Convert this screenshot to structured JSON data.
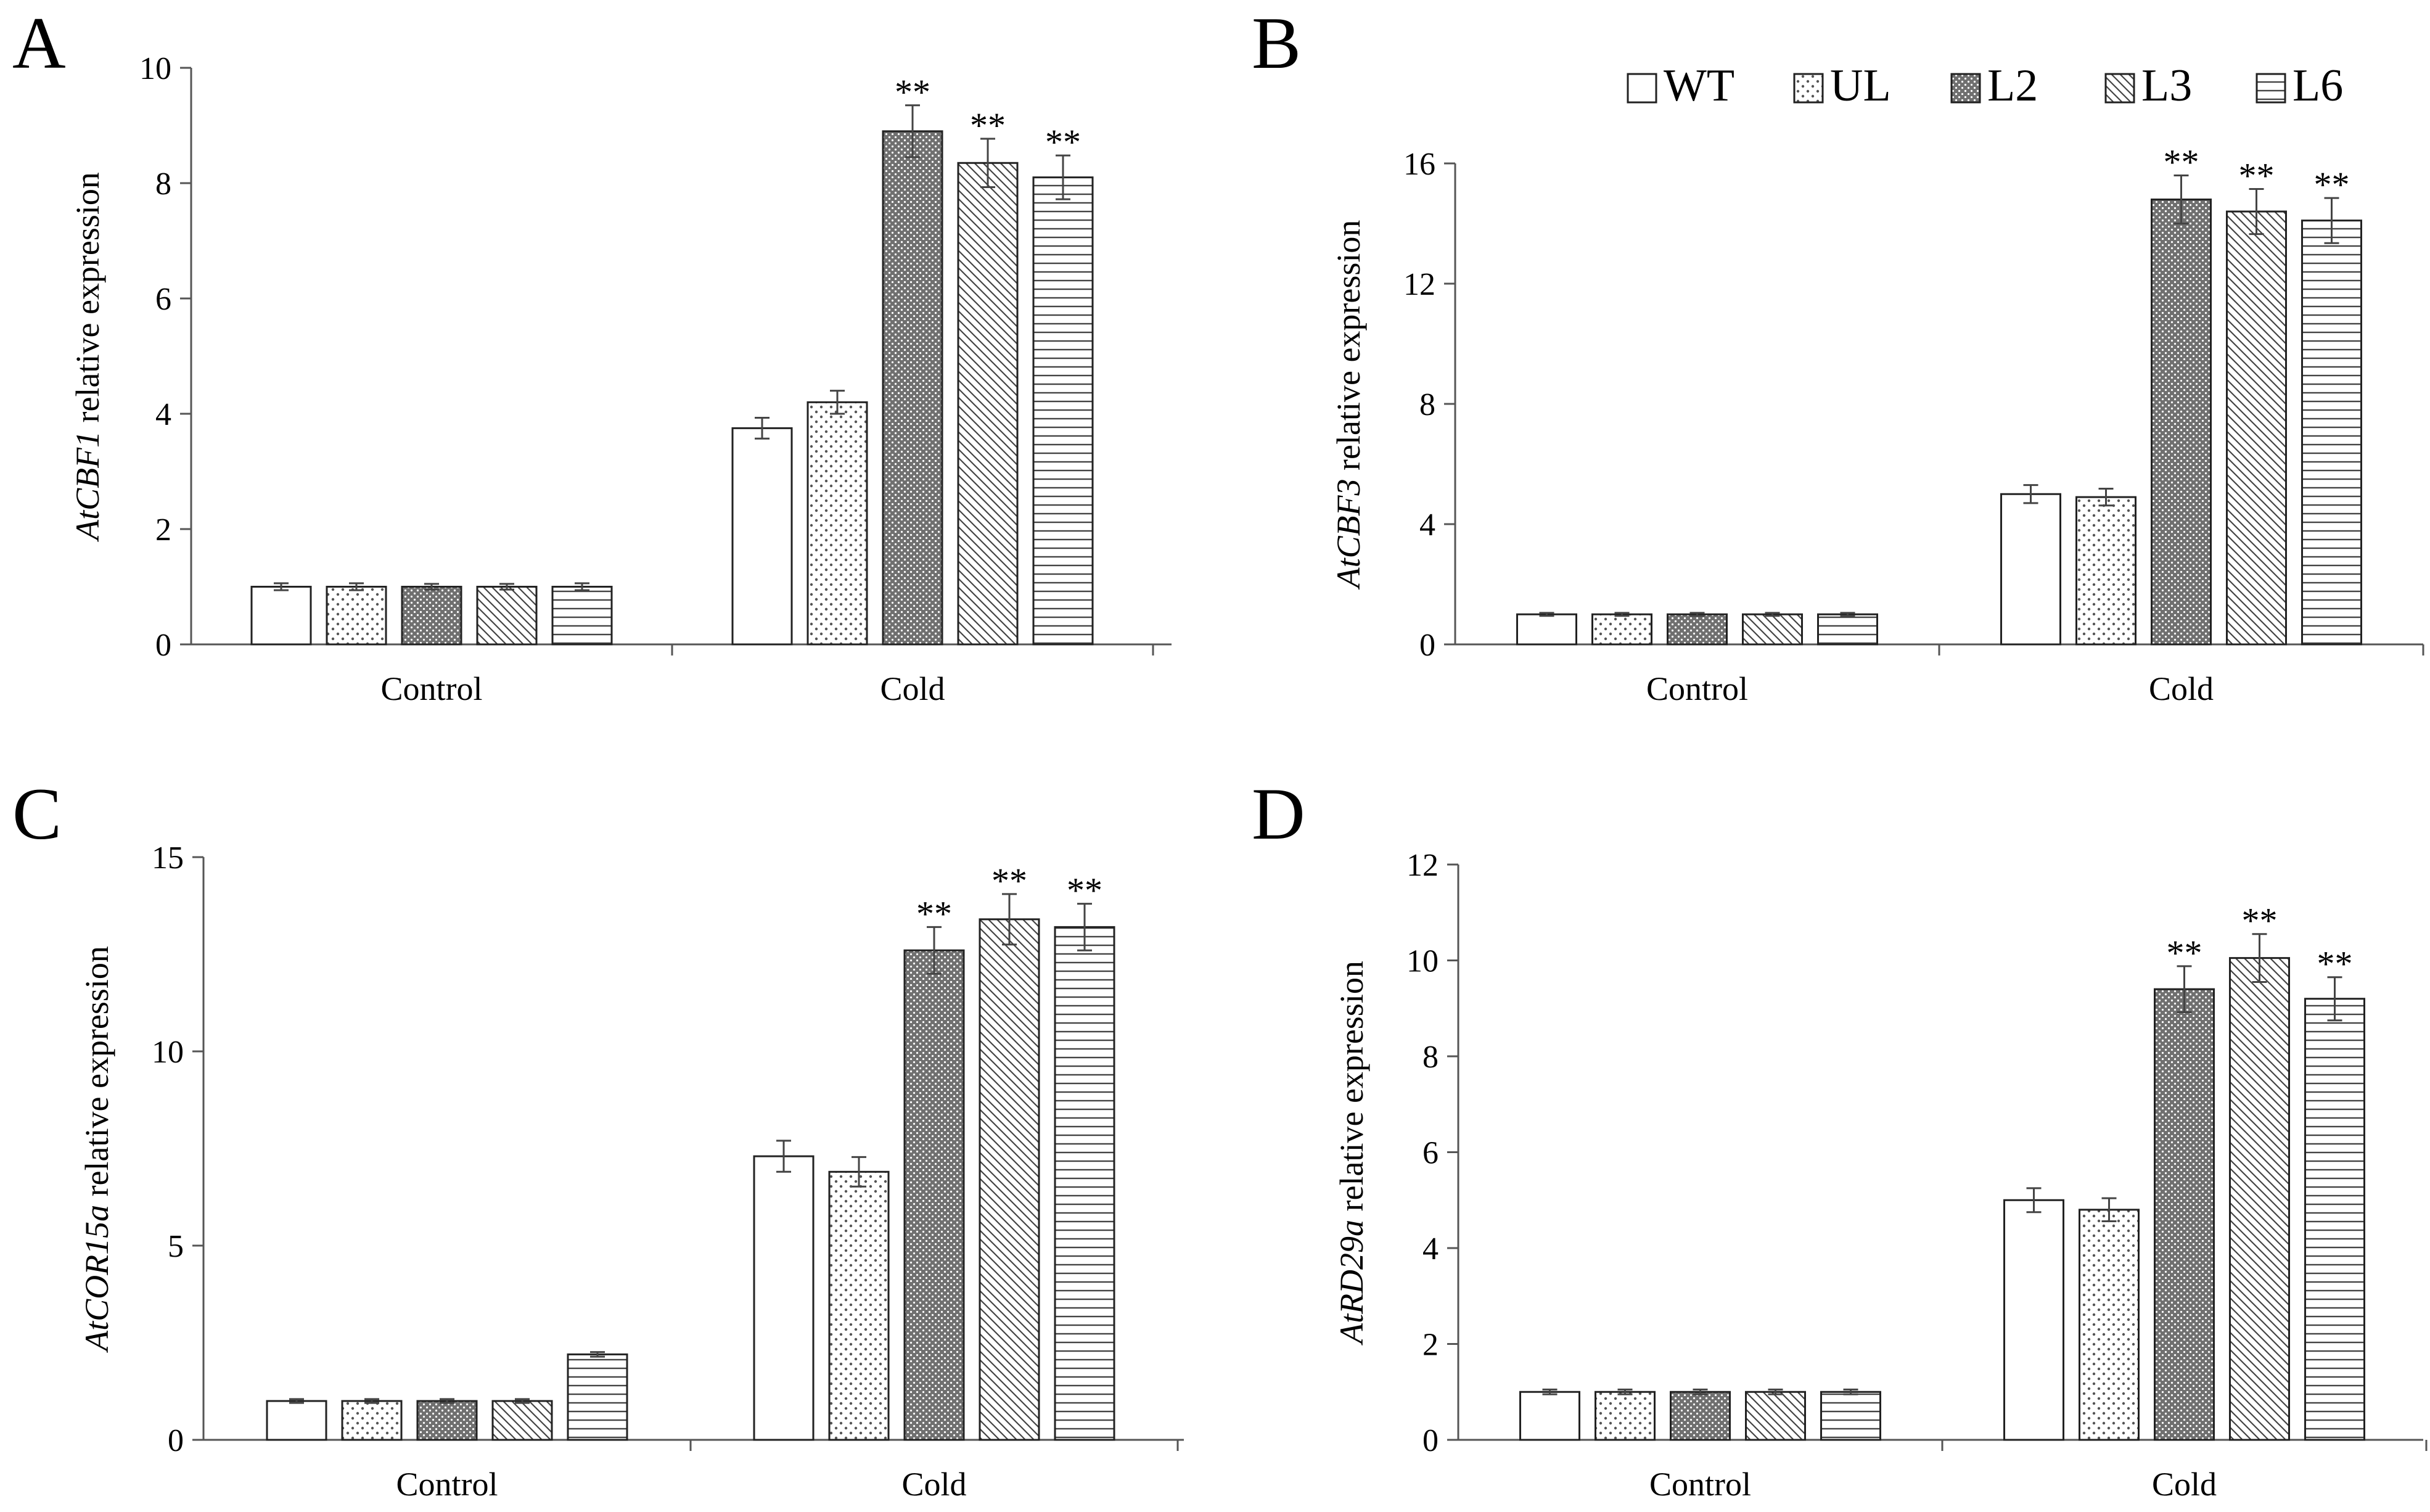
{
  "figure": {
    "legend": {
      "entries": [
        {
          "label": "WT",
          "pattern": "white"
        },
        {
          "label": "UL",
          "pattern": "dots"
        },
        {
          "label": "L2",
          "pattern": "dense"
        },
        {
          "label": "L3",
          "pattern": "diag"
        },
        {
          "label": "L6",
          "pattern": "hlines"
        }
      ]
    }
  },
  "chart_data": [
    {
      "type": "bar",
      "panel": "A",
      "gene": "AtCBF1",
      "ylabel_rest": " relative expression",
      "categories": [
        "Control",
        "Cold"
      ],
      "ylim": [
        0,
        10
      ],
      "yticks": [
        0,
        2,
        4,
        6,
        8,
        10
      ],
      "series": [
        {
          "name": "WT",
          "values": [
            1.0,
            3.75
          ],
          "errors": [
            0.06,
            0.18
          ],
          "sig": [
            "",
            ""
          ]
        },
        {
          "name": "UL",
          "values": [
            1.0,
            4.2
          ],
          "errors": [
            0.06,
            0.2
          ],
          "sig": [
            "",
            ""
          ]
        },
        {
          "name": "L2",
          "values": [
            1.0,
            8.9
          ],
          "errors": [
            0.05,
            0.45
          ],
          "sig": [
            "",
            "**"
          ]
        },
        {
          "name": "L3",
          "values": [
            1.0,
            8.35
          ],
          "errors": [
            0.05,
            0.42
          ],
          "sig": [
            "",
            "**"
          ]
        },
        {
          "name": "L6",
          "values": [
            1.0,
            8.1
          ],
          "errors": [
            0.06,
            0.38
          ],
          "sig": [
            "",
            "**"
          ]
        }
      ]
    },
    {
      "type": "bar",
      "panel": "B",
      "gene": "AtCBF3",
      "ylabel_rest": " relative expression",
      "categories": [
        "Control",
        "Cold"
      ],
      "ylim": [
        0,
        16
      ],
      "yticks": [
        0,
        4,
        8,
        12,
        16
      ],
      "series": [
        {
          "name": "WT",
          "values": [
            1.0,
            5.0
          ],
          "errors": [
            0.05,
            0.3
          ],
          "sig": [
            "",
            ""
          ]
        },
        {
          "name": "UL",
          "values": [
            1.0,
            4.9
          ],
          "errors": [
            0.05,
            0.28
          ],
          "sig": [
            "",
            ""
          ]
        },
        {
          "name": "L2",
          "values": [
            1.0,
            14.8
          ],
          "errors": [
            0.05,
            0.8
          ],
          "sig": [
            "",
            "**"
          ]
        },
        {
          "name": "L3",
          "values": [
            1.0,
            14.4
          ],
          "errors": [
            0.05,
            0.75
          ],
          "sig": [
            "",
            "**"
          ]
        },
        {
          "name": "L6",
          "values": [
            1.0,
            14.1
          ],
          "errors": [
            0.05,
            0.75
          ],
          "sig": [
            "",
            "**"
          ]
        }
      ]
    },
    {
      "type": "bar",
      "panel": "C",
      "gene": "AtCOR15a",
      "ylabel_rest": " relative expression",
      "categories": [
        "Control",
        "Cold"
      ],
      "ylim": [
        0,
        15
      ],
      "yticks": [
        0,
        5,
        10,
        15
      ],
      "series": [
        {
          "name": "WT",
          "values": [
            1.0,
            7.3
          ],
          "errors": [
            0.05,
            0.4
          ],
          "sig": [
            "",
            ""
          ]
        },
        {
          "name": "UL",
          "values": [
            1.0,
            6.9
          ],
          "errors": [
            0.05,
            0.38
          ],
          "sig": [
            "",
            ""
          ]
        },
        {
          "name": "L2",
          "values": [
            1.0,
            12.6
          ],
          "errors": [
            0.05,
            0.6
          ],
          "sig": [
            "",
            "**"
          ]
        },
        {
          "name": "L3",
          "values": [
            1.0,
            13.4
          ],
          "errors": [
            0.05,
            0.65
          ],
          "sig": [
            "",
            "**"
          ]
        },
        {
          "name": "L6",
          "values": [
            2.2,
            13.2
          ],
          "errors": [
            0.06,
            0.6
          ],
          "sig": [
            "",
            "**"
          ]
        }
      ]
    },
    {
      "type": "bar",
      "panel": "D",
      "gene": "AtRD29a",
      "ylabel_rest": " relative expression",
      "categories": [
        "Control",
        "Cold"
      ],
      "ylim": [
        0,
        12
      ],
      "yticks": [
        0,
        2,
        4,
        6,
        8,
        10,
        12
      ],
      "series": [
        {
          "name": "WT",
          "values": [
            1.0,
            5.0
          ],
          "errors": [
            0.05,
            0.25
          ],
          "sig": [
            "",
            ""
          ]
        },
        {
          "name": "UL",
          "values": [
            1.0,
            4.8
          ],
          "errors": [
            0.05,
            0.24
          ],
          "sig": [
            "",
            ""
          ]
        },
        {
          "name": "L2",
          "values": [
            1.0,
            9.4
          ],
          "errors": [
            0.05,
            0.48
          ],
          "sig": [
            "",
            "**"
          ]
        },
        {
          "name": "L3",
          "values": [
            1.0,
            10.05
          ],
          "errors": [
            0.05,
            0.5
          ],
          "sig": [
            "",
            "**"
          ]
        },
        {
          "name": "L6",
          "values": [
            1.0,
            9.2
          ],
          "errors": [
            0.05,
            0.45
          ],
          "sig": [
            "",
            "**"
          ]
        }
      ]
    }
  ]
}
